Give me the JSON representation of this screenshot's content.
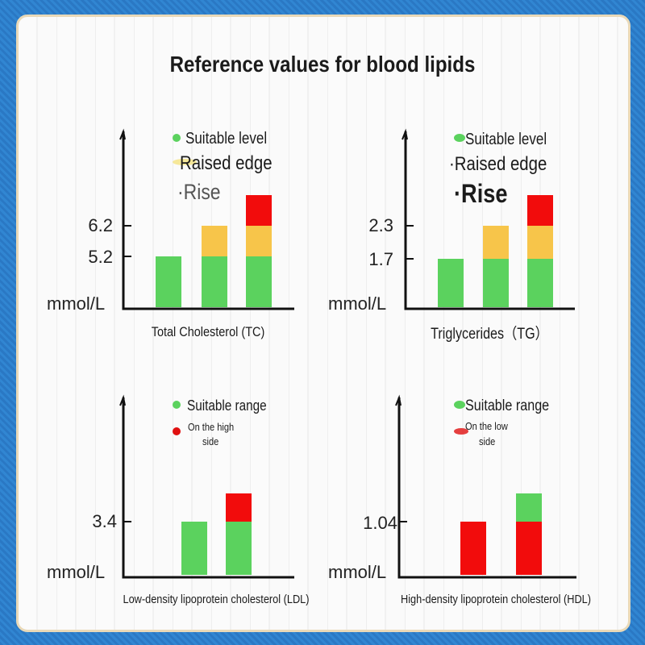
{
  "title": "Reference values for blood lipids",
  "colors": {
    "green": "#5bd25e",
    "yellow": "#f7c54a",
    "red": "#f20c0c",
    "axis": "#111111",
    "border": "#2d7fcb"
  },
  "chart_data": [
    {
      "type": "bar",
      "stacked": true,
      "xlabel": "Total Cholesterol (TC)",
      "ylabel": "mmol/L",
      "yticks": [
        "5.2",
        "6.2"
      ],
      "legend": [
        "Suitable level",
        "Raised edge",
        "·Rise"
      ],
      "bars": [
        {
          "segments": [
            {
              "status": "green",
              "from": 0,
              "to": 5.2
            }
          ]
        },
        {
          "segments": [
            {
              "status": "green",
              "from": 0,
              "to": 5.2
            },
            {
              "status": "yellow",
              "from": 5.2,
              "to": 6.2
            }
          ]
        },
        {
          "segments": [
            {
              "status": "green",
              "from": 0,
              "to": 5.2
            },
            {
              "status": "yellow",
              "from": 5.2,
              "to": 6.2
            },
            {
              "status": "red",
              "from": 6.2,
              "to": null
            }
          ]
        }
      ]
    },
    {
      "type": "bar",
      "stacked": true,
      "xlabel": "Triglycerides（TG）",
      "ylabel": "mmol/L",
      "yticks": [
        "1.7",
        "2.3"
      ],
      "legend": [
        "Suitable level",
        "·Raised edge",
        "·Rise"
      ],
      "bars": [
        {
          "segments": [
            {
              "status": "green",
              "from": 0,
              "to": 1.7
            }
          ]
        },
        {
          "segments": [
            {
              "status": "green",
              "from": 0,
              "to": 1.7
            },
            {
              "status": "yellow",
              "from": 1.7,
              "to": 2.3
            }
          ]
        },
        {
          "segments": [
            {
              "status": "green",
              "from": 0,
              "to": 1.7
            },
            {
              "status": "yellow",
              "from": 1.7,
              "to": 2.3
            },
            {
              "status": "red",
              "from": 2.3,
              "to": null
            }
          ]
        }
      ]
    },
    {
      "type": "bar",
      "stacked": true,
      "xlabel": "Low-density lipoprotein cholesterol (LDL)",
      "ylabel": "mmol/L",
      "yticks": [
        "3.4"
      ],
      "legend": [
        "Suitable range",
        "On the high",
        "side"
      ],
      "bars": [
        {
          "segments": [
            {
              "status": "green",
              "from": 0,
              "to": 3.4
            }
          ]
        },
        {
          "segments": [
            {
              "status": "green",
              "from": 0,
              "to": 3.4
            },
            {
              "status": "red",
              "from": 3.4,
              "to": null
            }
          ]
        }
      ]
    },
    {
      "type": "bar",
      "stacked": true,
      "xlabel": "High-density lipoprotein cholesterol (HDL)",
      "ylabel": "mmol/L",
      "yticks": [
        "1.04"
      ],
      "legend": [
        "Suitable range",
        "On the low",
        "side"
      ],
      "bars": [
        {
          "segments": [
            {
              "status": "red",
              "from": 0,
              "to": 1.04
            }
          ]
        },
        {
          "segments": [
            {
              "status": "red",
              "from": 0,
              "to": 1.04
            },
            {
              "status": "green",
              "from": 1.04,
              "to": null
            }
          ]
        }
      ]
    }
  ]
}
